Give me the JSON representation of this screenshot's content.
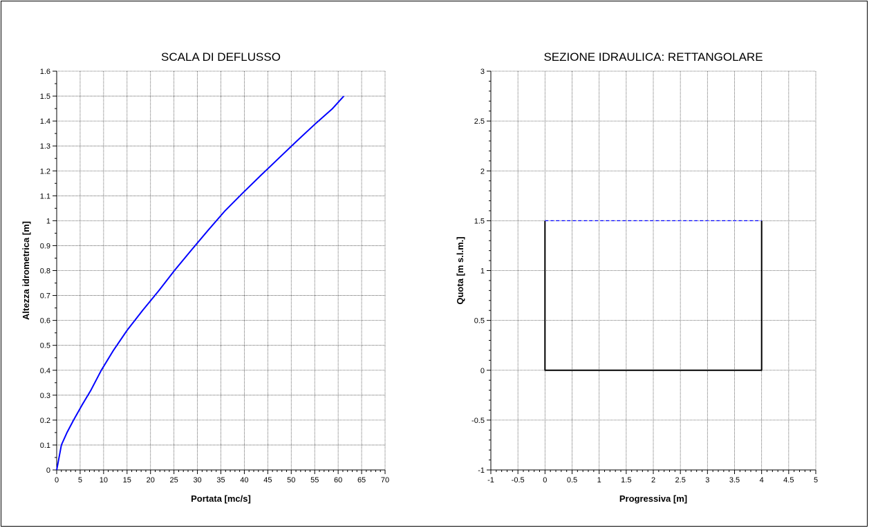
{
  "chart_data": [
    {
      "type": "line",
      "title": "SCALA DI DEFLUSSO",
      "xlabel": "Portata  [mc/s]",
      "ylabel": "Altezza idrometrica  [m]",
      "xlim": [
        0,
        70
      ],
      "ylim": [
        0,
        1.6
      ],
      "xticks": [
        "0",
        "5",
        "10",
        "15",
        "20",
        "25",
        "30",
        "35",
        "40",
        "45",
        "50",
        "55",
        "60",
        "65",
        "70"
      ],
      "yticks": [
        "0",
        "0.1",
        "0.2",
        "0.3",
        "0.4",
        "0.5",
        "0.6",
        "0.7",
        "0.8",
        "0.9",
        "1",
        "1.1",
        "1.2",
        "1.3",
        "1.4",
        "1.5",
        "1.6"
      ],
      "grid": true,
      "series": [
        {
          "color": "#0000ff",
          "x": [
            0,
            0.2,
            0.5,
            1.0,
            2.2,
            3.6,
            5.4,
            7.3,
            9.5,
            12.1,
            15.0,
            18.3,
            21.8,
            25.1,
            28.6,
            32.2,
            35.9,
            39.6,
            43.4,
            47.3,
            51.2,
            55.2,
            58.8,
            61.2
          ],
          "y": [
            0,
            0.02,
            0.05,
            0.1,
            0.15,
            0.2,
            0.26,
            0.32,
            0.4,
            0.48,
            0.56,
            0.64,
            0.72,
            0.8,
            0.88,
            0.96,
            1.04,
            1.11,
            1.18,
            1.25,
            1.32,
            1.39,
            1.45,
            1.5
          ]
        }
      ]
    },
    {
      "type": "line",
      "title": "SEZIONE IDRAULICA: RETTANGOLARE",
      "xlabel": "Progressiva  [m]",
      "ylabel": "Quota  [m s.l.m.]",
      "xlim": [
        -1,
        5
      ],
      "ylim": [
        -1,
        3
      ],
      "xticks": [
        "-1",
        "-0.5",
        "0",
        "0.5",
        "1",
        "1.5",
        "2",
        "2.5",
        "3",
        "3.5",
        "4",
        "4.5",
        "5"
      ],
      "yticks": [
        "-1",
        "-0.5",
        "0",
        "0.5",
        "1",
        "1.5",
        "2",
        "2.5",
        "3"
      ],
      "grid": true,
      "series": [
        {
          "color": "#000000",
          "x": [
            0,
            0,
            4,
            4
          ],
          "y": [
            1.5,
            0,
            0,
            1.5
          ]
        },
        {
          "color": "#0000ff",
          "dash": true,
          "x": [
            0,
            4
          ],
          "y": [
            1.5,
            1.5
          ]
        }
      ]
    }
  ]
}
